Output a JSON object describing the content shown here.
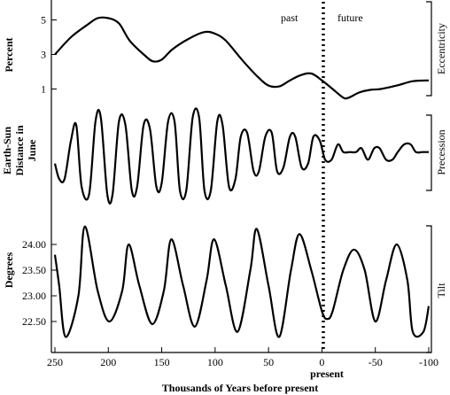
{
  "chart_data": {
    "type": "line",
    "xlabel": "Thousands of Years before present",
    "x_ticks": [
      "250",
      "200",
      "150",
      "100",
      "50",
      "0",
      "-50",
      "-100"
    ],
    "x_range": [
      250,
      -100
    ],
    "present_label": "present",
    "past_label": "past",
    "future_label": "future",
    "panels": [
      {
        "name": "Eccentricity",
        "ylabel": "Percent",
        "y_ticks": [
          "5",
          "3",
          "1"
        ],
        "ylim": [
          0,
          6
        ],
        "x": [
          250,
          235,
          220,
          210,
          200,
          190,
          180,
          165,
          158,
          150,
          140,
          125,
          110,
          100,
          90,
          75,
          60,
          50,
          40,
          30,
          20,
          10,
          0,
          -10,
          -20,
          -25,
          -35,
          -45,
          -55,
          -70,
          -85,
          -100
        ],
        "y": [
          3.0,
          4.0,
          4.7,
          5.1,
          5.1,
          4.8,
          3.8,
          2.9,
          2.6,
          2.7,
          3.3,
          3.9,
          4.3,
          4.2,
          3.8,
          2.7,
          1.7,
          1.2,
          1.15,
          1.5,
          1.8,
          1.9,
          1.5,
          1.0,
          0.5,
          0.5,
          0.8,
          0.95,
          1.0,
          1.2,
          1.45,
          1.5
        ]
      },
      {
        "name": "Precession",
        "ylabel": "Earth-Sun Distance in June",
        "y_ticks": [],
        "ylim": [
          -1.2,
          1.2
        ],
        "x": [
          250,
          246,
          241,
          235,
          230,
          225,
          218,
          212,
          207,
          201,
          196,
          190,
          184,
          178,
          173,
          167,
          161,
          155,
          150,
          144,
          138,
          133,
          127,
          121,
          115,
          110,
          104,
          98,
          93,
          87,
          81,
          76,
          70,
          64,
          59,
          53,
          47,
          42,
          36,
          30,
          25,
          19,
          13,
          8,
          2,
          -3,
          -9,
          -15,
          -20,
          -26,
          -32,
          -37,
          -43,
          -49,
          -54,
          -60,
          -66,
          -71,
          -77,
          -83,
          -88,
          -94,
          -100
        ],
        "y": [
          -0.2,
          -0.6,
          -0.6,
          0.4,
          0.8,
          -0.8,
          -1.0,
          0.9,
          1.0,
          -1.0,
          -1.0,
          0.9,
          0.8,
          -0.9,
          -0.8,
          0.8,
          0.7,
          -0.8,
          -0.7,
          0.9,
          0.9,
          -0.9,
          -0.9,
          1.0,
          1.0,
          -0.9,
          -0.9,
          0.9,
          0.8,
          -0.8,
          -0.6,
          0.5,
          0.6,
          -0.4,
          -0.4,
          0.5,
          0.6,
          -0.4,
          -0.3,
          0.5,
          0.5,
          -0.3,
          -0.2,
          0.5,
          0.4,
          -0.1,
          -0.1,
          0.3,
          0.1,
          0.1,
          0.1,
          0.2,
          -0.1,
          0.2,
          0.2,
          -0.1,
          -0.1,
          0.1,
          0.3,
          0.3,
          0.1,
          0.1,
          0.1
        ]
      },
      {
        "name": "Tilt",
        "ylabel": "Degrees",
        "y_ticks": [
          "24.00",
          "23.50",
          "23.00",
          "22.50"
        ],
        "ylim": [
          22.0,
          24.5
        ],
        "x": [
          250,
          246,
          240,
          228,
          222,
          210,
          199,
          187,
          181,
          171,
          159,
          148,
          141,
          130,
          119,
          108,
          101,
          90,
          79,
          67,
          61,
          50,
          40,
          29,
          21,
          10,
          0,
          -5,
          -10,
          -20,
          -30,
          -40,
          -50,
          -60,
          -70,
          -80,
          -85,
          -95,
          -100
        ],
        "y": [
          23.8,
          23.2,
          22.2,
          23.0,
          24.35,
          23.1,
          22.5,
          23.1,
          24.0,
          23.2,
          22.45,
          23.1,
          24.1,
          23.2,
          22.4,
          23.3,
          24.1,
          23.2,
          22.3,
          23.5,
          24.3,
          23.2,
          22.2,
          23.5,
          24.2,
          23.5,
          22.7,
          22.55,
          22.7,
          23.5,
          23.9,
          23.5,
          22.5,
          23.3,
          24.0,
          23.3,
          22.3,
          22.3,
          22.8
        ]
      }
    ],
    "x_data": [],
    "grid": false
  }
}
